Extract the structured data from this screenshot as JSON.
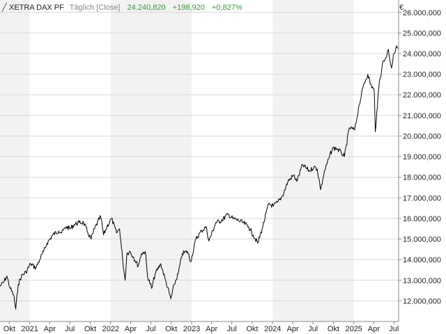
{
  "header": {
    "instrument": "XETRA DAX PF",
    "interval": "Täglich [Close]",
    "last": "24.240,820",
    "change": "+198,920",
    "change_pct": "+0,827%"
  },
  "colors": {
    "positive": "#2e9e2e",
    "line": "#000000",
    "band": "#f2f2f2",
    "grid": "#d8d8d8",
    "axis": "#888888"
  },
  "chart_data": {
    "type": "line",
    "currency_label": "€",
    "x_tick_labels": [
      "Okt",
      "2021",
      "Apr",
      "Jul",
      "Okt",
      "2022",
      "Apr",
      "Jul",
      "Okt",
      "2023",
      "Apr",
      "Jul",
      "Okt",
      "2024",
      "Apr",
      "Jul",
      "Okt",
      "2025",
      "Apr",
      "Jul"
    ],
    "y_tick_labels": [
      "12.000,000",
      "13.000,000",
      "14.000,000",
      "15.000,000",
      "16.000,000",
      "17.000,000",
      "18.000,000",
      "19.000,000",
      "20.000,000",
      "21.000,000",
      "22.000,000",
      "23.000,000",
      "24.000,000",
      "25.000,000",
      "26.000,000"
    ],
    "y_ticks": [
      12000,
      13000,
      14000,
      15000,
      16000,
      17000,
      18000,
      19000,
      20000,
      21000,
      22000,
      23000,
      24000,
      25000,
      26000
    ],
    "ylim": [
      11000,
      26600
    ],
    "xlim": [
      "2020-08-20",
      "2025-07-22"
    ],
    "grid": true,
    "series": [
      {
        "x": [
          "2020-08-20",
          "2020-09-05",
          "2020-09-20",
          "2020-10-05",
          "2020-10-20",
          "2020-10-30",
          "2020-11-10",
          "2020-11-25",
          "2020-12-15",
          "2021-01-05",
          "2021-01-29",
          "2021-02-15",
          "2021-03-05",
          "2021-03-20",
          "2021-04-15",
          "2021-05-12",
          "2021-05-25",
          "2021-06-15",
          "2021-07-01",
          "2021-07-20",
          "2021-08-12",
          "2021-09-01",
          "2021-09-20",
          "2021-10-05",
          "2021-10-20",
          "2021-11-17",
          "2021-11-30",
          "2021-12-15",
          "2022-01-05",
          "2022-01-27",
          "2022-02-10",
          "2022-02-24",
          "2022-03-07",
          "2022-03-15",
          "2022-03-29",
          "2022-04-15",
          "2022-05-05",
          "2022-05-20",
          "2022-06-06",
          "2022-06-16",
          "2022-07-05",
          "2022-07-20",
          "2022-08-15",
          "2022-09-05",
          "2022-09-29",
          "2022-10-15",
          "2022-11-01",
          "2022-11-20",
          "2022-12-13",
          "2022-12-28",
          "2023-01-20",
          "2023-02-15",
          "2023-03-07",
          "2023-03-20",
          "2023-04-20",
          "2023-05-15",
          "2023-06-15",
          "2023-07-05",
          "2023-07-31",
          "2023-08-20",
          "2023-09-15",
          "2023-10-05",
          "2023-10-26",
          "2023-11-15",
          "2023-12-14",
          "2024-01-05",
          "2024-01-25",
          "2024-02-15",
          "2024-03-10",
          "2024-04-05",
          "2024-04-19",
          "2024-05-15",
          "2024-06-15",
          "2024-07-05",
          "2024-07-20",
          "2024-08-05",
          "2024-08-20",
          "2024-09-10",
          "2024-09-27",
          "2024-10-15",
          "2024-11-05",
          "2024-11-20",
          "2024-12-12",
          "2025-01-05",
          "2025-01-25",
          "2025-02-15",
          "2025-03-05",
          "2025-03-18",
          "2025-04-03",
          "2025-04-08",
          "2025-04-15",
          "2025-04-25",
          "2025-05-10",
          "2025-05-25",
          "2025-06-06",
          "2025-06-20",
          "2025-07-01",
          "2025-07-10",
          "2025-07-22"
        ],
        "y": [
          12700,
          12900,
          13200,
          12600,
          12300,
          11600,
          12800,
          13200,
          13400,
          13800,
          13600,
          14000,
          14400,
          14800,
          15200,
          15400,
          15300,
          15600,
          15500,
          15700,
          15800,
          15800,
          15300,
          15000,
          15500,
          16100,
          15200,
          15600,
          16000,
          15300,
          15500,
          14000,
          13000,
          14300,
          14400,
          14100,
          13700,
          14300,
          14400,
          13200,
          12600,
          13300,
          13800,
          13000,
          12100,
          12800,
          13300,
          14300,
          14400,
          13900,
          15000,
          15400,
          15600,
          14900,
          15800,
          15900,
          16200,
          16000,
          15900,
          15800,
          15600,
          15200,
          14800,
          15500,
          16700,
          16600,
          16800,
          17100,
          17800,
          18100,
          17800,
          18600,
          18300,
          18500,
          18400,
          17400,
          18200,
          18900,
          19400,
          19400,
          19200,
          19000,
          20400,
          20300,
          21500,
          22500,
          23000,
          22500,
          22200,
          20200,
          21200,
          22500,
          23500,
          23800,
          24200,
          23300,
          24000,
          24300,
          24240
        ]
      }
    ]
  }
}
